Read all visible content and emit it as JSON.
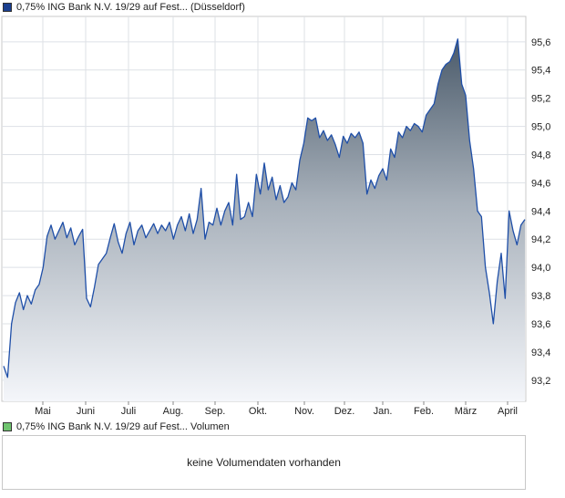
{
  "legend_price": {
    "label": "0,75% ING Bank N.V. 19/29 auf Fest... (Düsseldorf)",
    "color": "#1a3f8f"
  },
  "legend_volume": {
    "label": "0,75% ING Bank N.V. 19/29 auf Fest... Volumen",
    "color": "#4caf50"
  },
  "volume_panel": {
    "message": "keine Volumendaten vorhanden"
  },
  "chart_data": {
    "type": "area",
    "ylim": [
      93.05,
      95.78
    ],
    "y_ticks": [
      "93,2",
      "93,4",
      "93,6",
      "93,8",
      "94,0",
      "94,2",
      "94,4",
      "94,6",
      "94,8",
      "95,0",
      "95,2",
      "95,4",
      "95,6"
    ],
    "x_ticks": [
      "Mai",
      "Juni",
      "Juli",
      "Aug.",
      "Sep.",
      "Okt.",
      "Nov.",
      "Dez.",
      "Jan.",
      "Feb.",
      "März",
      "April"
    ],
    "line_color": "#1f4fa8",
    "fill_top_color": "#4a5a6a",
    "fill_bottom_color": "#f4f6fa",
    "grid": true,
    "series": [
      {
        "values": [
          93.3,
          93.22,
          93.6,
          93.75,
          93.82,
          93.7,
          93.8,
          93.74,
          93.84,
          93.88,
          94.0,
          94.22,
          94.3,
          94.2,
          94.26,
          94.32,
          94.21,
          94.28,
          94.16,
          94.22,
          94.27,
          93.78,
          93.72,
          93.86,
          94.02,
          94.06,
          94.1,
          94.21,
          94.31,
          94.18,
          94.1,
          94.24,
          94.32,
          94.16,
          94.26,
          94.3,
          94.21,
          94.26,
          94.31,
          94.24,
          94.3,
          94.26,
          94.32,
          94.2,
          94.3,
          94.36,
          94.26,
          94.38,
          94.24,
          94.34,
          94.56,
          94.2,
          94.32,
          94.3,
          94.42,
          94.3,
          94.4,
          94.46,
          94.3,
          94.66,
          94.34,
          94.36,
          94.46,
          94.36,
          94.66,
          94.52,
          94.74,
          94.55,
          94.64,
          94.48,
          94.58,
          94.46,
          94.5,
          94.6,
          94.55,
          94.76,
          94.88,
          95.06,
          95.04,
          95.06,
          94.92,
          94.97,
          94.9,
          94.94,
          94.87,
          94.78,
          94.93,
          94.88,
          94.95,
          94.92,
          94.96,
          94.88,
          94.52,
          94.62,
          94.56,
          94.65,
          94.7,
          94.62,
          94.84,
          94.78,
          94.96,
          94.92,
          95.0,
          94.97,
          95.02,
          95.0,
          94.96,
          95.08,
          95.12,
          95.16,
          95.3,
          95.4,
          95.44,
          95.46,
          95.52,
          95.62,
          95.3,
          95.22,
          94.9,
          94.7,
          94.4,
          94.36,
          94.0,
          93.82,
          93.6,
          93.9,
          94.1,
          93.78,
          94.4,
          94.26,
          94.16,
          94.3,
          94.34
        ]
      }
    ]
  }
}
